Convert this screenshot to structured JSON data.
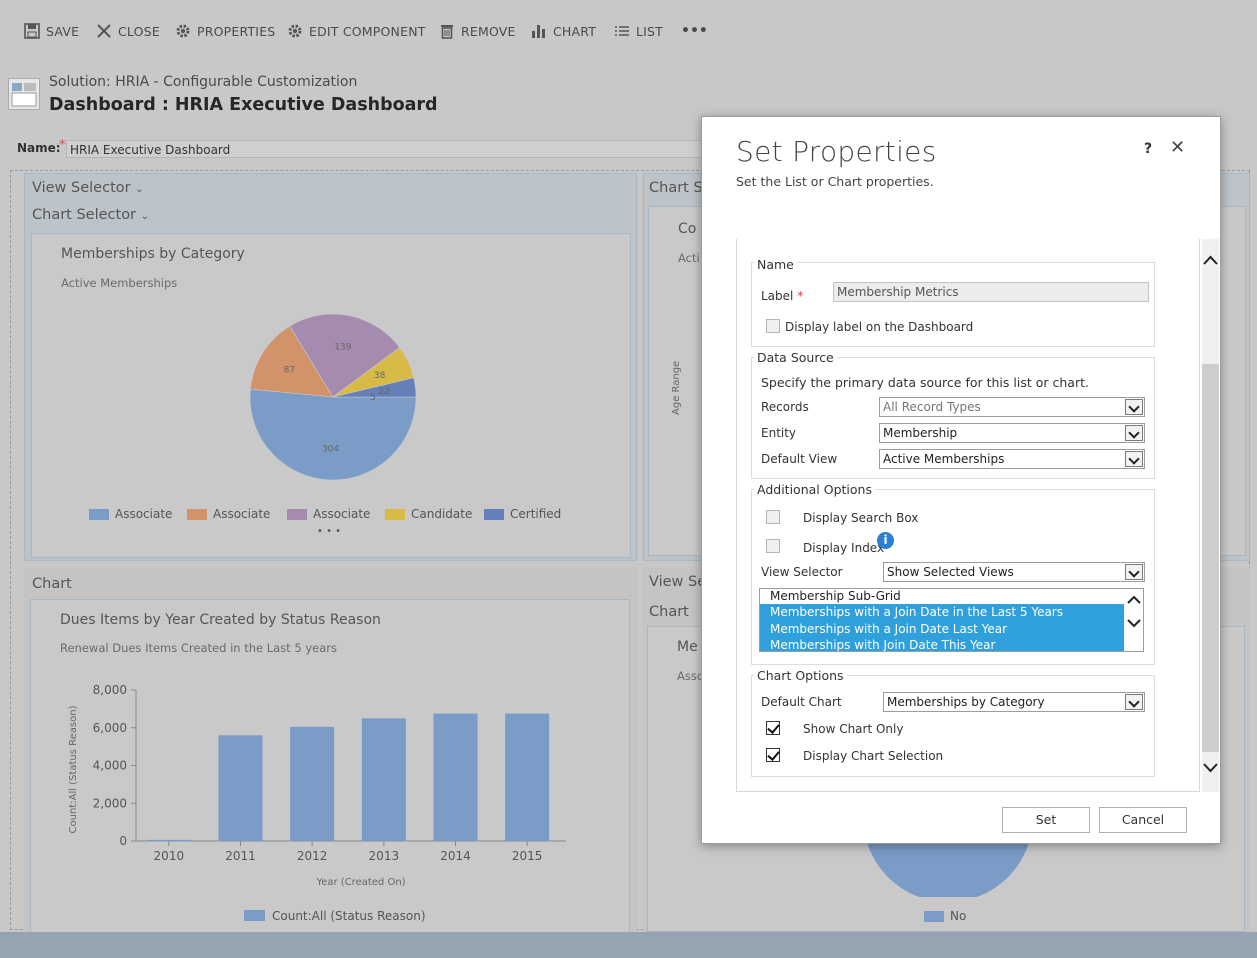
{
  "toolbar": {
    "save": "SAVE",
    "close": "CLOSE",
    "properties": "PROPERTIES",
    "edit_component": "EDIT COMPONENT",
    "remove": "REMOVE",
    "chart": "CHART",
    "list": "LIST",
    "more": "•••"
  },
  "header": {
    "solution": "Solution: HRIA - Configurable Customization",
    "title": "Dashboard : HRIA Executive Dashboard",
    "name_label": "Name:",
    "name_required": "*",
    "name_value": "HRIA Executive Dashboard"
  },
  "panel1": {
    "view_selector": "View Selector",
    "chart_selector": "Chart Selector",
    "chart_title": "Memberships by Category",
    "chart_subtitle": "Active Memberships",
    "more": "• • •"
  },
  "panel2": {
    "chart_selector": "Chart Se",
    "chart_title_partial": "Co",
    "sub_partial": "Acti",
    "axis_partial": "Age Range"
  },
  "panel3": {
    "label": "Chart",
    "chart_title": "Dues Items by Year Created by Status Reason",
    "chart_subtitle": "Renewal Dues Items Created in the Last 5 years"
  },
  "panel4": {
    "view_selector": "View Se",
    "chart": "Chart",
    "title_partial": "Me",
    "sub_partial": "Asso",
    "legend": "No"
  },
  "chart_data": [
    {
      "type": "pie",
      "title": "Memberships by Category",
      "subtitle": "Active Memberships",
      "labels": [
        "Associate",
        "Associate",
        "Associate",
        "Candidate",
        "Certified"
      ],
      "values": [
        304,
        87,
        139,
        38,
        22
      ],
      "value_labels": [
        "304",
        "87",
        "139",
        "38",
        "22"
      ],
      "extra_labels": [
        "5"
      ],
      "colors": [
        "#7a9cc6",
        "#d2936a",
        "#a58cae",
        "#d8bb47",
        "#6580b8"
      ],
      "legend": "bottom"
    },
    {
      "type": "bar",
      "title": "Dues Items by Year Created by Status Reason",
      "subtitle": "Renewal Dues Items Created in the Last 5 years",
      "categories": [
        "2010",
        "2011",
        "2012",
        "2013",
        "2014",
        "2015"
      ],
      "series": [
        {
          "name": "Count:All (Status Reason)",
          "values": [
            60,
            5600,
            6050,
            6500,
            6750,
            6750
          ]
        }
      ],
      "ylim": [
        0,
        8000
      ],
      "yticks": [
        "0",
        "2,000",
        "4,000",
        "6,000",
        "8,000"
      ],
      "xlabel": "Year (Created On)",
      "ylabel": "Count:All (Status Reason)",
      "color": "#7b9cc6",
      "legend": "bottom"
    }
  ],
  "dialog": {
    "title": "Set Properties",
    "subtitle": "Set the List or Chart properties.",
    "help": "?",
    "close": "✕",
    "name_section": "Name",
    "label_label": "Label",
    "required": "*",
    "label_value": "Membership Metrics",
    "display_label": "Display label on the Dashboard",
    "data_source_section": "Data Source",
    "data_source_desc": "Specify the primary data source for this list or chart.",
    "records_label": "Records",
    "records_value": "All Record Types",
    "entity_label": "Entity",
    "entity_value": "Membership",
    "default_view_label": "Default View",
    "default_view_value": "Active Memberships",
    "additional_section": "Additional Options",
    "display_search": "Display Search Box",
    "display_index": "Display Index",
    "view_selector_label": "View Selector",
    "view_selector_value": "Show Selected Views",
    "views": [
      {
        "label": "Membership Sub-Grid",
        "selected": false
      },
      {
        "label": "Memberships with a Join Date in the Last 5 Years",
        "selected": true
      },
      {
        "label": "Memberships with a Join Date Last Year",
        "selected": true
      },
      {
        "label": "Memberships with Join Date This Year",
        "selected": true
      }
    ],
    "chart_options_section": "Chart Options",
    "default_chart_label": "Default Chart",
    "default_chart_value": "Memberships by Category",
    "show_chart_only": "Show Chart Only",
    "display_chart_selection": "Display Chart Selection",
    "set_button": "Set",
    "cancel_button": "Cancel"
  }
}
